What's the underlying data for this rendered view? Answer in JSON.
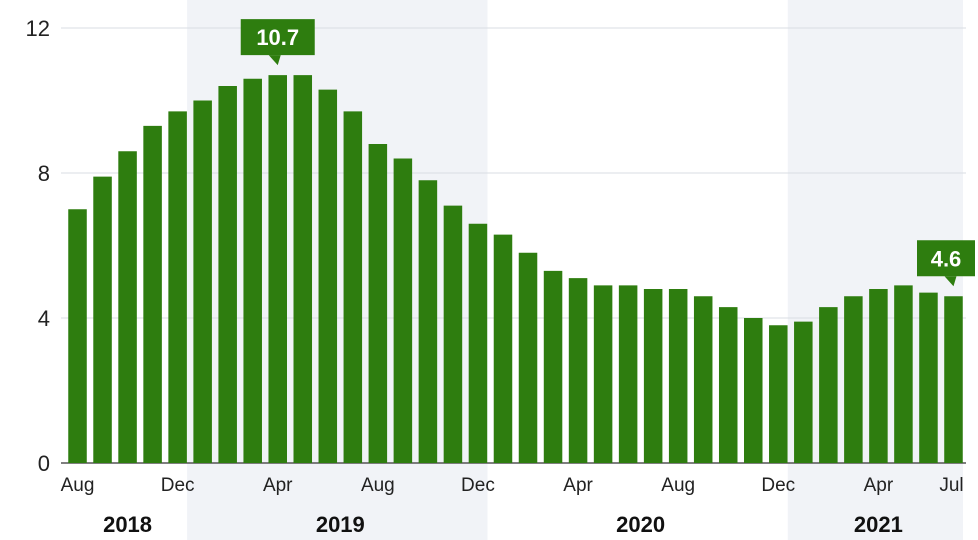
{
  "chart_data": {
    "type": "bar",
    "x": [
      "2018-08",
      "2018-09",
      "2018-10",
      "2018-11",
      "2018-12",
      "2019-01",
      "2019-02",
      "2019-03",
      "2019-04",
      "2019-05",
      "2019-06",
      "2019-07",
      "2019-08",
      "2019-09",
      "2019-10",
      "2019-11",
      "2019-12",
      "2020-01",
      "2020-02",
      "2020-03",
      "2020-04",
      "2020-05",
      "2020-06",
      "2020-07",
      "2020-08",
      "2020-09",
      "2020-10",
      "2020-11",
      "2020-12",
      "2021-01",
      "2021-02",
      "2021-03",
      "2021-04",
      "2021-05",
      "2021-06",
      "2021-07"
    ],
    "values": [
      7.0,
      7.9,
      8.6,
      9.3,
      9.7,
      10.0,
      10.4,
      10.6,
      10.7,
      10.7,
      10.3,
      9.7,
      8.8,
      8.4,
      7.8,
      7.1,
      6.6,
      6.3,
      5.8,
      5.3,
      5.1,
      4.9,
      4.9,
      4.8,
      4.8,
      4.6,
      4.3,
      4.0,
      3.8,
      3.9,
      4.3,
      4.6,
      4.8,
      4.9,
      4.7,
      4.6
    ],
    "ylim": [
      0,
      12
    ],
    "y_ticks": [
      "0",
      "4",
      "8",
      "12"
    ],
    "x_tick_labels": [
      {
        "index": 0,
        "label": "Aug"
      },
      {
        "index": 4,
        "label": "Dec"
      },
      {
        "index": 8,
        "label": "Apr"
      },
      {
        "index": 12,
        "label": "Aug"
      },
      {
        "index": 16,
        "label": "Dec"
      },
      {
        "index": 20,
        "label": "Apr"
      },
      {
        "index": 24,
        "label": "Aug"
      },
      {
        "index": 28,
        "label": "Dec"
      },
      {
        "index": 32,
        "label": "Apr"
      },
      {
        "index": 35,
        "label": "Jul"
      }
    ],
    "years": [
      {
        "label": "2018",
        "start": 0,
        "end": 4
      },
      {
        "label": "2019",
        "start": 5,
        "end": 16
      },
      {
        "label": "2020",
        "start": 17,
        "end": 28
      },
      {
        "label": "2021",
        "start": 29,
        "end": 35
      }
    ],
    "annotations": [
      {
        "index": 8,
        "label": "10.7"
      },
      {
        "index": 35,
        "label": "4.6"
      }
    ],
    "colors": {
      "bar": "#2e7d0f",
      "callout": "#2e7d0f",
      "band": "#f1f3f7",
      "grid": "#d9dde3"
    },
    "grid": true
  }
}
